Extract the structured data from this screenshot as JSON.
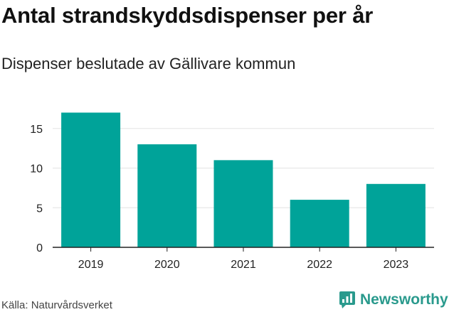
{
  "title": "Antal strandskyddsdispenser per år",
  "subtitle": "Dispenser beslutade av Gällivare kommun",
  "source": "Källa: Naturvårdsverket",
  "brand": "Newsworthy",
  "colors": {
    "bar": "#00a399",
    "grid": "#e3e3e3",
    "axis": "#222222",
    "brand": "#2a9a8d"
  },
  "chart_data": {
    "type": "bar",
    "title": "Antal strandskyddsdispenser per år",
    "subtitle": "Dispenser beslutade av Gällivare kommun",
    "categories": [
      "2019",
      "2020",
      "2021",
      "2022",
      "2023"
    ],
    "values": [
      17,
      13,
      11,
      6,
      8
    ],
    "xlabel": "",
    "ylabel": "",
    "ylim": [
      0,
      18
    ],
    "yticks": [
      0,
      5,
      10,
      15
    ],
    "grid": true,
    "legend": "none"
  }
}
